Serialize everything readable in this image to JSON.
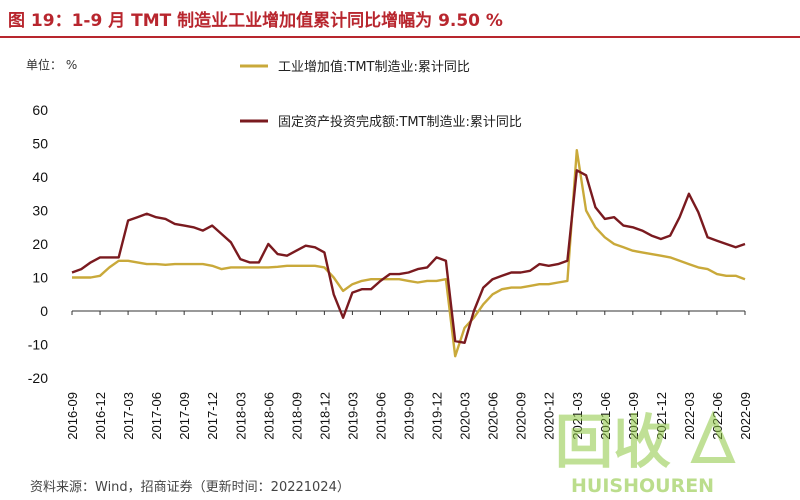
{
  "header": {
    "title": "图 19：1-9 月 TMT 制造业工业增加值累计同比增幅为 9.50 %"
  },
  "unit_label": "单位： %",
  "footer": {
    "source": "资料来源：Wind，招商证券（更新时间：20221024）"
  },
  "watermark": {
    "text_cn": "回收",
    "text_en": "HUISHOUREN"
  },
  "colors": {
    "title": "#b8262e",
    "series_1": "#c9a93a",
    "series_2": "#7a1a1f",
    "watermark": "#8dc63f"
  },
  "chart_data": {
    "type": "line",
    "ylim": [
      -20,
      60
    ],
    "yticks": [
      -20,
      -10,
      0,
      10,
      20,
      30,
      40,
      50,
      60
    ],
    "x": [
      "2016-09",
      "2016-10",
      "2016-11",
      "2016-12",
      "2017-01",
      "2017-02",
      "2017-03",
      "2017-04",
      "2017-05",
      "2017-06",
      "2017-07",
      "2017-08",
      "2017-09",
      "2017-10",
      "2017-11",
      "2017-12",
      "2018-01",
      "2018-02",
      "2018-03",
      "2018-04",
      "2018-05",
      "2018-06",
      "2018-07",
      "2018-08",
      "2018-09",
      "2018-10",
      "2018-11",
      "2018-12",
      "2019-01",
      "2019-02",
      "2019-03",
      "2019-04",
      "2019-05",
      "2019-06",
      "2019-07",
      "2019-08",
      "2019-09",
      "2019-10",
      "2019-11",
      "2019-12",
      "2020-01",
      "2020-02",
      "2020-03",
      "2020-04",
      "2020-05",
      "2020-06",
      "2020-07",
      "2020-08",
      "2020-09",
      "2020-10",
      "2020-11",
      "2020-12",
      "2021-01",
      "2021-02",
      "2021-03",
      "2021-04",
      "2021-05",
      "2021-06",
      "2021-07",
      "2021-08",
      "2021-09",
      "2021-10",
      "2021-11",
      "2021-12",
      "2022-01",
      "2022-02",
      "2022-03",
      "2022-04",
      "2022-05",
      "2022-06",
      "2022-07",
      "2022-08",
      "2022-09"
    ],
    "xticks": [
      "2016-09",
      "2016-12",
      "2017-03",
      "2017-06",
      "2017-09",
      "2017-12",
      "2018-03",
      "2018-06",
      "2018-09",
      "2018-12",
      "2019-03",
      "2019-06",
      "2019-09",
      "2019-12",
      "2020-03",
      "2020-06",
      "2020-09",
      "2020-12",
      "2021-03",
      "2021-06",
      "2021-09",
      "2021-12",
      "2022-03",
      "2022-06",
      "2022-09"
    ],
    "series": [
      {
        "name": "工业增加值:TMT制造业:累计同比",
        "values": [
          10,
          10,
          10,
          10.5,
          13,
          15,
          15,
          14.5,
          14,
          14,
          13.8,
          14,
          14,
          14,
          14,
          13.5,
          12.5,
          13,
          13,
          13,
          13,
          13,
          13.2,
          13.5,
          13.5,
          13.5,
          13.5,
          13,
          10,
          6,
          8,
          9,
          9.5,
          9.5,
          9.5,
          9.5,
          9,
          8.5,
          9,
          9,
          9.5,
          -13.5,
          -5,
          -2,
          2,
          5,
          6.5,
          7,
          7,
          7.5,
          8,
          8,
          8.5,
          9,
          48,
          30,
          25,
          22,
          20,
          19,
          18,
          17.5,
          17,
          16.5,
          16,
          15,
          14,
          13,
          12.5,
          11,
          10.5,
          10.5,
          9.5
        ]
      },
      {
        "name": "固定资产投资完成额:TMT制造业:累计同比",
        "values": [
          11.5,
          12.5,
          14.5,
          16,
          16,
          16,
          27,
          28,
          29,
          28,
          27.5,
          26,
          25.5,
          25,
          24,
          25.5,
          23,
          20.5,
          15.5,
          14.5,
          14.5,
          20,
          17,
          16.5,
          18,
          19.5,
          19,
          17.5,
          5,
          -2,
          5.5,
          6.5,
          6.5,
          9,
          11,
          11,
          11.5,
          12.5,
          13,
          16,
          15,
          -9,
          -9.5,
          0,
          7,
          9.5,
          10.5,
          11.5,
          11.5,
          12,
          14,
          13.5,
          14,
          15,
          42,
          40.5,
          31,
          27.5,
          28,
          25.5,
          25,
          24,
          22.5,
          21.5,
          22.5,
          28,
          35,
          29.5,
          22,
          21,
          20,
          19,
          20
        ]
      }
    ]
  }
}
